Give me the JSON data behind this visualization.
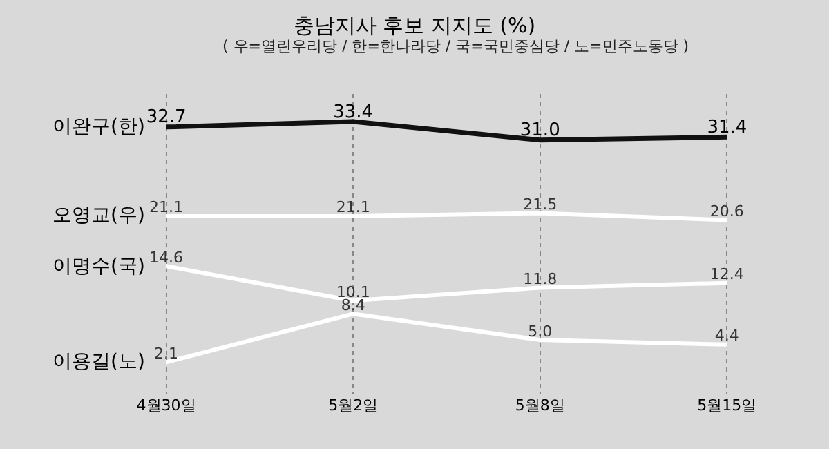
{
  "chart_data": {
    "type": "line",
    "title": "충남지사 후보 지지도 (%)",
    "subtitle": "( 우=열린우리당 / 한=한나라당 / 국=국민중심당 / 노=민주노동당 )",
    "categories": [
      "4월30일",
      "5월2일",
      "5월8일",
      "5월15일"
    ],
    "series": [
      {
        "name": "이완구(한)",
        "color": "#111111",
        "values": [
          32.7,
          33.4,
          31.0,
          31.4
        ],
        "value_labels": [
          "32.7",
          "33.4",
          "31.0",
          "31.4"
        ]
      },
      {
        "name": "오영교(우)",
        "color": "#ffffff",
        "values": [
          21.1,
          21.1,
          21.5,
          20.6
        ],
        "value_labels": [
          "21.1",
          "21.1",
          "21.5",
          "20.6"
        ]
      },
      {
        "name": "이명수(국)",
        "color": "#ffffff",
        "values": [
          14.6,
          10.1,
          11.8,
          12.4
        ],
        "value_labels": [
          "14.6",
          "10.1",
          "11.8",
          "12.4"
        ]
      },
      {
        "name": "이용길(노)",
        "color": "#ffffff",
        "values": [
          2.1,
          8.4,
          5.0,
          4.4
        ],
        "value_labels": [
          "2.1",
          "8.4",
          "5.0",
          "4.4"
        ]
      }
    ],
    "grid": "x",
    "legend": false,
    "marker": "none",
    "line_style": "solid"
  }
}
